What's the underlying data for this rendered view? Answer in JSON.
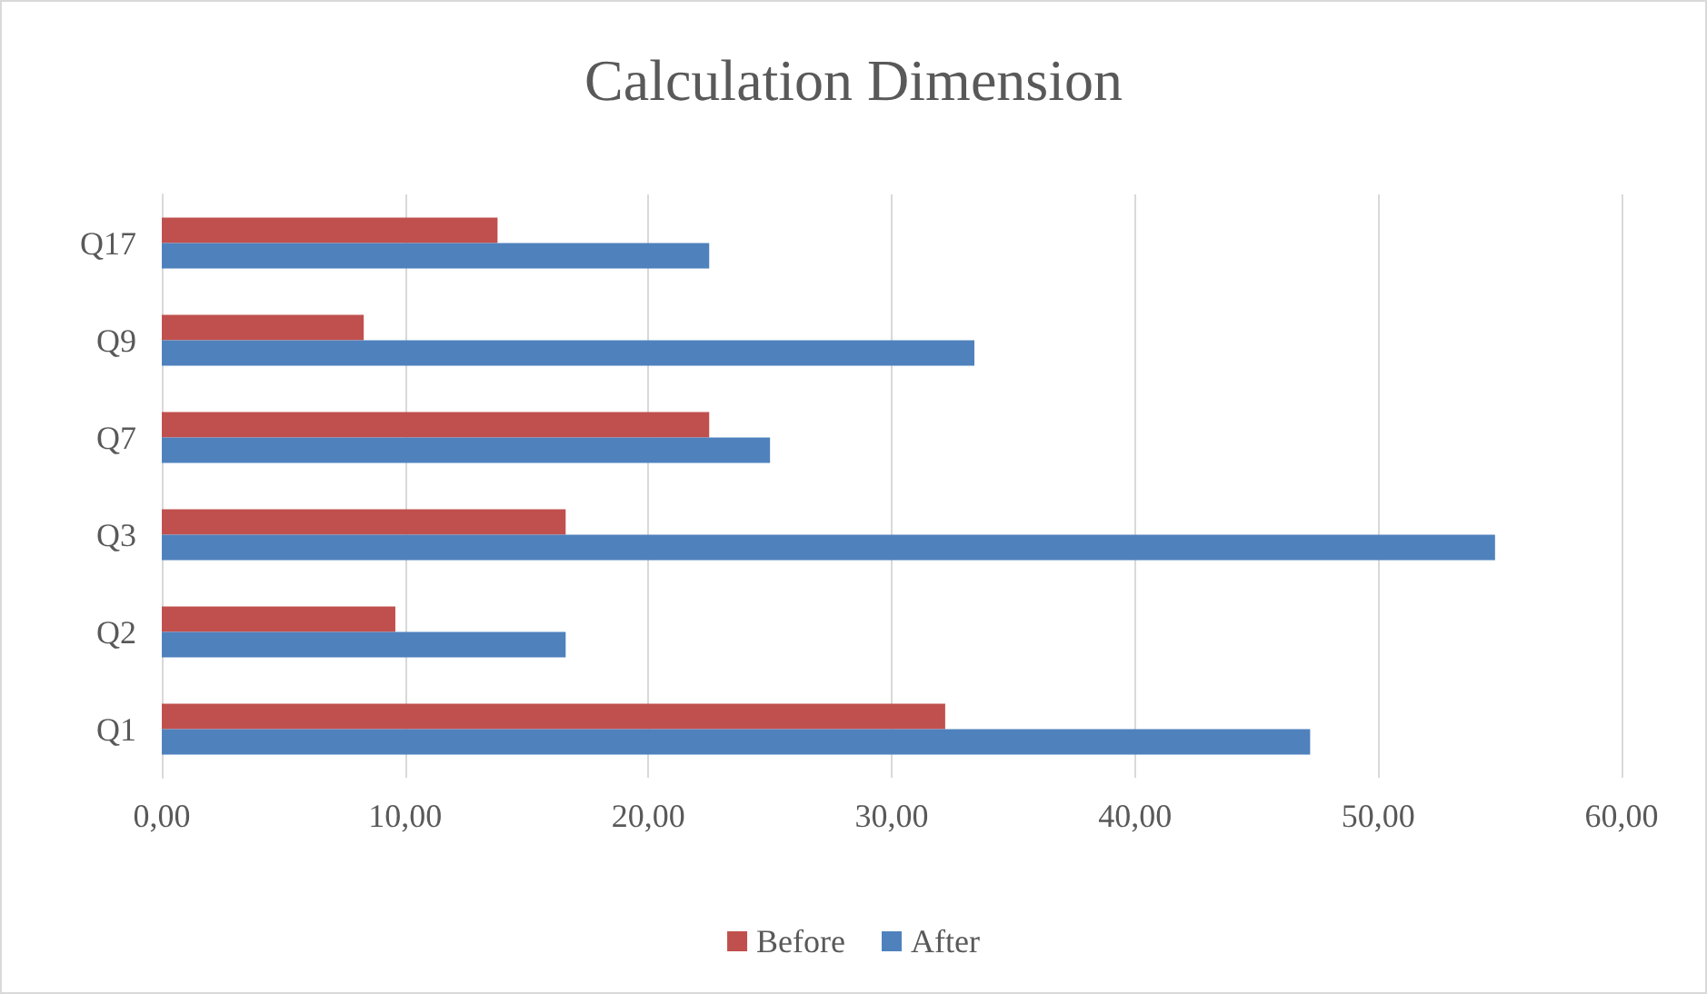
{
  "chart_data": {
    "type": "bar",
    "orientation": "horizontal",
    "title": "Calculation Dimension",
    "categories": [
      "Q17",
      "Q9",
      "Q7",
      "Q3",
      "Q2",
      "Q1"
    ],
    "series": [
      {
        "name": "Before",
        "color": "#c0504d",
        "values": [
          13.8,
          8.3,
          22.5,
          16.6,
          9.6,
          32.2
        ]
      },
      {
        "name": "After",
        "color": "#4f81bd",
        "values": [
          22.5,
          33.4,
          25.0,
          54.8,
          16.6,
          47.2
        ]
      }
    ],
    "xlim": [
      0,
      60
    ],
    "xticks": [
      {
        "value": 0,
        "label": "0,00"
      },
      {
        "value": 10,
        "label": "10,00"
      },
      {
        "value": 20,
        "label": "20,00"
      },
      {
        "value": 30,
        "label": "30,00"
      },
      {
        "value": 40,
        "label": "40,00"
      },
      {
        "value": 50,
        "label": "50,00"
      },
      {
        "value": 60,
        "label": "60,00"
      }
    ],
    "grid": "x",
    "legend": "bottom"
  }
}
